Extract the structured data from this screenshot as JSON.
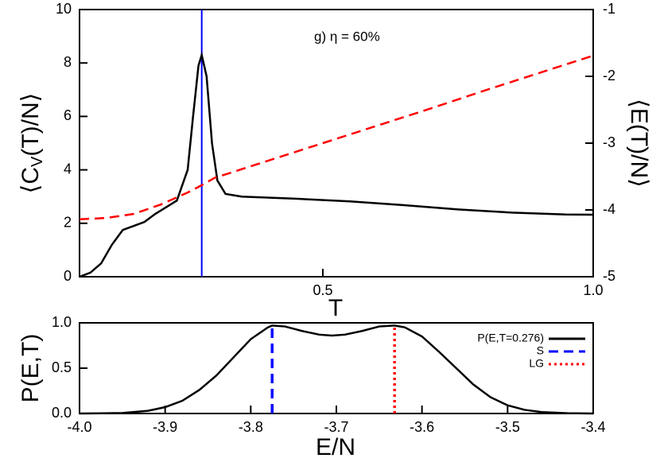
{
  "chart_data": [
    {
      "type": "line",
      "annotation": "g) η = 60%",
      "xlabel": "T",
      "ylabel": {
        "main": "⟨C",
        "sub": "V",
        "rest": "(T)/N⟩"
      },
      "y2label": "⟨E(T)/N⟩",
      "xlim": [
        0.05,
        1.0
      ],
      "xticks": [
        0.5,
        {
          "value": 1,
          "label": "1.0"
        }
      ],
      "ylim": [
        0,
        10
      ],
      "yticks": [
        0,
        2,
        4,
        6,
        8,
        10
      ],
      "y2lim": [
        -5,
        -1
      ],
      "y2ticks": [
        -5,
        -4,
        -3,
        -2,
        -1
      ],
      "vline": {
        "x": 0.276,
        "color": "#0000ff"
      },
      "series": [
        {
          "color": "#000000",
          "style": "solid",
          "x": [
            0.05,
            0.07,
            0.09,
            0.11,
            0.13,
            0.15,
            0.17,
            0.19,
            0.21,
            0.23,
            0.25,
            0.26,
            0.27,
            0.276,
            0.285,
            0.295,
            0.305,
            0.32,
            0.35,
            0.45,
            0.55,
            0.65,
            0.75,
            0.85,
            0.95,
            1.0
          ],
          "values": [
            0,
            0.15,
            0.5,
            1.2,
            1.75,
            1.9,
            2.05,
            2.35,
            2.6,
            2.85,
            4.0,
            6.0,
            7.9,
            8.3,
            7.5,
            5.0,
            3.6,
            3.1,
            3.0,
            2.92,
            2.82,
            2.68,
            2.52,
            2.4,
            2.33,
            2.32
          ]
        },
        {
          "color": "#ff0000",
          "style": "dashed",
          "axis": "y2",
          "x": [
            0.05,
            0.1,
            0.15,
            0.2,
            0.25,
            0.276,
            0.3,
            0.4,
            0.5,
            0.6,
            0.7,
            0.8,
            0.9,
            1.0
          ],
          "values": [
            -4.14,
            -4.12,
            -4.06,
            -3.92,
            -3.74,
            -3.63,
            -3.52,
            -3.26,
            -3.0,
            -2.74,
            -2.48,
            -2.21,
            -1.95,
            -1.69
          ]
        }
      ]
    },
    {
      "type": "line",
      "xlabel": "E/N",
      "ylabel": "P(E,T)",
      "xlim": [
        -4.0,
        -3.4
      ],
      "xticks": [
        {
          "value": -4,
          "label": "-4.0"
        },
        -3.9,
        -3.8,
        -3.7,
        -3.6,
        -3.5,
        -3.4
      ],
      "ylim": [
        0,
        1
      ],
      "yticks": [
        {
          "value": 0,
          "label": "0.0"
        },
        0.5,
        {
          "value": 1,
          "label": "1.0"
        }
      ],
      "legend": "upper right",
      "series": [
        {
          "name": "P(E,T=0.276)",
          "color": "#000000",
          "style": "solid",
          "x": [
            -4.0,
            -3.95,
            -3.92,
            -3.9,
            -3.88,
            -3.86,
            -3.84,
            -3.82,
            -3.8,
            -3.78,
            -3.775,
            -3.76,
            -3.74,
            -3.72,
            -3.705,
            -3.69,
            -3.67,
            -3.65,
            -3.632,
            -3.62,
            -3.6,
            -3.58,
            -3.56,
            -3.54,
            -3.52,
            -3.5,
            -3.48,
            -3.46,
            -3.43,
            -3.4
          ],
          "values": [
            0,
            0.005,
            0.03,
            0.07,
            0.14,
            0.26,
            0.42,
            0.62,
            0.82,
            0.95,
            0.97,
            0.96,
            0.91,
            0.87,
            0.86,
            0.87,
            0.91,
            0.96,
            0.97,
            0.95,
            0.85,
            0.68,
            0.5,
            0.32,
            0.18,
            0.09,
            0.04,
            0.015,
            0.003,
            0
          ]
        }
      ],
      "vlines": [
        {
          "name": "S",
          "color": "#0000ff",
          "style": "dashed",
          "x": -3.775,
          "top": 0.97
        },
        {
          "name": "LG",
          "color": "#ff0000",
          "style": "dotted",
          "x": -3.632,
          "top": 0.97
        }
      ]
    }
  ]
}
